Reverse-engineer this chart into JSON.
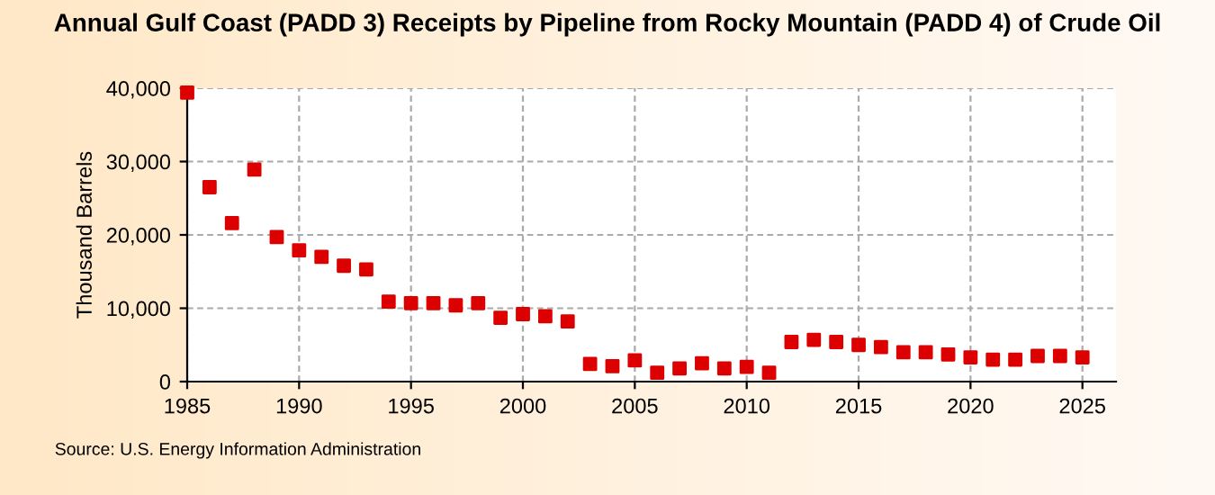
{
  "chart_data": {
    "type": "scatter",
    "title": "Annual Gulf Coast (PADD 3) Receipts by Pipeline from Rocky Mountain (PADD 4) of Crude Oil",
    "ylabel": "Thousand Barrels",
    "annotations": [
      "Source: U.S. Energy Information Administration"
    ],
    "x": [
      1985,
      1986,
      1987,
      1988,
      1989,
      1990,
      1991,
      1992,
      1993,
      1994,
      1995,
      1996,
      1997,
      1998,
      1999,
      2000,
      2001,
      2002,
      2003,
      2004,
      2005,
      2006,
      2007,
      2008,
      2009,
      2010,
      2011,
      2012,
      2013,
      2014,
      2015,
      2016,
      2017,
      2018,
      2019,
      2020,
      2021,
      2022,
      2023,
      2024,
      2025
    ],
    "series": [
      {
        "color": "#dd0000",
        "values": [
          39400,
          26500,
          21600,
          28900,
          19700,
          17900,
          17000,
          15800,
          15300,
          10900,
          10700,
          10700,
          10400,
          10700,
          8700,
          9200,
          8900,
          8200,
          2400,
          2100,
          2900,
          1200,
          1800,
          2500,
          1800,
          2000,
          1200,
          5400,
          5700,
          5400,
          5000,
          4700,
          4000,
          4000,
          3700,
          3300,
          3000,
          3000,
          3500,
          3500,
          3300
        ]
      }
    ],
    "xlim": [
      1985,
      2026.5
    ],
    "xticks": [
      1985,
      1990,
      1995,
      2000,
      2005,
      2010,
      2015,
      2020,
      2025
    ],
    "ylim": [
      0,
      40000
    ],
    "yticks": [
      {
        "value": 0,
        "label": "0"
      },
      {
        "value": 10000,
        "label": "10,000"
      },
      {
        "value": 20000,
        "label": "20,000"
      },
      {
        "value": 30000,
        "label": "30,000"
      },
      {
        "value": 40000,
        "label": "40,000"
      }
    ],
    "grid": true,
    "marker": "square"
  }
}
